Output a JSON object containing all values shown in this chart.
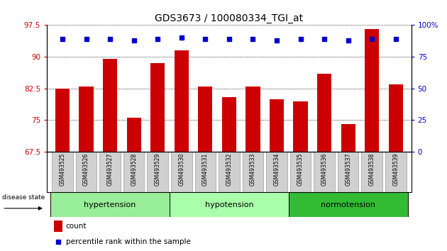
{
  "title": "GDS3673 / 100080334_TGI_at",
  "samples": [
    "GSM493525",
    "GSM493526",
    "GSM493527",
    "GSM493528",
    "GSM493529",
    "GSM493530",
    "GSM493531",
    "GSM493532",
    "GSM493533",
    "GSM493534",
    "GSM493535",
    "GSM493536",
    "GSM493537",
    "GSM493538",
    "GSM493539"
  ],
  "counts": [
    82.5,
    83.0,
    89.5,
    75.5,
    88.5,
    91.5,
    83.0,
    80.5,
    83.0,
    80.0,
    79.5,
    86.0,
    74.0,
    96.5,
    83.5
  ],
  "percentile_ranks": [
    89,
    89,
    89,
    88,
    89,
    90,
    89,
    89,
    89,
    88,
    89,
    89,
    88,
    89,
    89
  ],
  "groups": [
    {
      "label": "hypertension",
      "start": 0,
      "end": 5,
      "color": "#99ee99"
    },
    {
      "label": "hypotension",
      "start": 5,
      "end": 10,
      "color": "#aaffaa"
    },
    {
      "label": "normotension",
      "start": 10,
      "end": 15,
      "color": "#33bb33"
    }
  ],
  "ylim_left": [
    67.5,
    97.5
  ],
  "ylim_right": [
    0,
    100
  ],
  "yticks_left": [
    67.5,
    75.0,
    82.5,
    90.0,
    97.5
  ],
  "ytick_labels_left": [
    "67.5",
    "75",
    "82.5",
    "90",
    "97.5"
  ],
  "yticks_right": [
    0,
    25,
    50,
    75,
    100
  ],
  "ytick_labels_right": [
    "0",
    "25",
    "50",
    "75",
    "100%"
  ],
  "bar_color": "#cc0000",
  "dot_color": "#0000cc",
  "background_color": "#ffffff",
  "grid_color": "#000000",
  "tick_color_left": "#cc0000",
  "tick_color_right": "#0000cc",
  "disease_state_label": "disease state",
  "legend_count_label": "count",
  "legend_percentile_label": "percentile rank within the sample",
  "bar_width": 0.6,
  "xtick_box_color": "#d0d0d0",
  "n_samples": 15
}
